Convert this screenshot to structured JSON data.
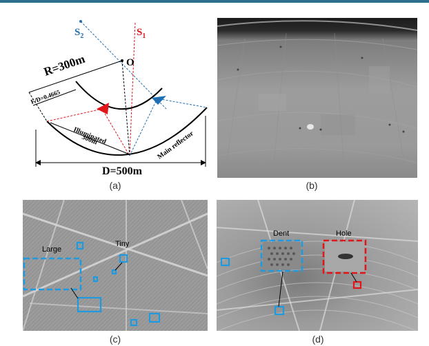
{
  "figure": {
    "panel_a": {
      "caption": "(a)",
      "labels": {
        "s2": "S",
        "s2_sub": "2",
        "s1": "S",
        "s1_sub": "1",
        "origin": "O",
        "radius": "R=300m",
        "fd": "F/D=0.4665",
        "illuminated_line1": "Illuminated",
        "illuminated_line2": "300m",
        "main_reflector": "Main reflector",
        "diameter": "D=500m"
      },
      "colors": {
        "s1": "#e0161b",
        "s2": "#1f6fb4"
      }
    },
    "panel_b": {
      "caption": "(b)"
    },
    "panel_c": {
      "caption": "(c)",
      "labels": {
        "large": "Large",
        "tiny": "Tiny"
      },
      "box_color": "#1e9be0"
    },
    "panel_d": {
      "caption": "(d)",
      "labels": {
        "dent": "Dent",
        "hole": "Hole"
      },
      "colors": {
        "dent": "#1e9be0",
        "hole": "#e0161b"
      }
    }
  }
}
